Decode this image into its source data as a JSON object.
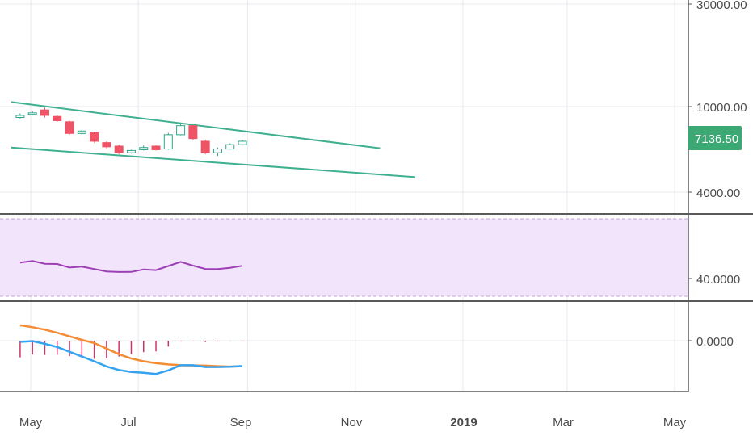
{
  "colors": {
    "up": "#2fa58a",
    "down": "#ef5366",
    "channel": "#3fb08f",
    "rsi": "#9c3fb5",
    "rsi_band": "#f2e5fb",
    "macd": "#36a3f0",
    "signal": "#f48c36",
    "hist": "#d0336b",
    "grid": "#e6eaee",
    "sep": "#5a5a5a",
    "last_price_bg": "#3ca874"
  },
  "price_scale": {
    "ticks": [
      {
        "label": "30000.00",
        "value": 30000
      },
      {
        "label": "10000.00",
        "value": 10000
      },
      {
        "label": "4000.00",
        "value": 4000
      }
    ],
    "last_price": {
      "label": "7136.50",
      "value": 7136.5
    }
  },
  "rsi_scale": {
    "ticks": [
      {
        "label": "40.0000",
        "value": 40
      }
    ]
  },
  "macd_scale": {
    "ticks": [
      {
        "label": "0.0000",
        "value": 0
      }
    ]
  },
  "time_axis": [
    {
      "label": "May",
      "date": "2018-05-01",
      "bold": false
    },
    {
      "label": "Jul",
      "date": "2018-07-01",
      "bold": false
    },
    {
      "label": "Sep",
      "date": "2018-09-01",
      "bold": false
    },
    {
      "label": "Nov",
      "date": "2018-11-01",
      "bold": false
    },
    {
      "label": "2019",
      "date": "2019-01-01",
      "bold": true
    },
    {
      "label": "Mar",
      "date": "2019-03-01",
      "bold": false
    },
    {
      "label": "May",
      "date": "2019-05-01",
      "bold": false
    }
  ],
  "chart_data": {
    "type": "candlestick",
    "scale": "log",
    "ylim": [
      3500,
      33000
    ],
    "xlim": [
      "2018-04-25",
      "2019-05-01"
    ],
    "candles": [
      {
        "date": "2018-04-25",
        "open": 8900,
        "high": 9300,
        "low": 8800,
        "close": 9100
      },
      {
        "date": "2018-05-02",
        "open": 9200,
        "high": 9500,
        "low": 9100,
        "close": 9350
      },
      {
        "date": "2018-05-09",
        "open": 9650,
        "high": 9900,
        "low": 8900,
        "close": 9100
      },
      {
        "date": "2018-05-16",
        "open": 9000,
        "high": 9100,
        "low": 8500,
        "close": 8600
      },
      {
        "date": "2018-05-23",
        "open": 8500,
        "high": 8600,
        "low": 7400,
        "close": 7500
      },
      {
        "date": "2018-05-30",
        "open": 7500,
        "high": 7800,
        "low": 7400,
        "close": 7700
      },
      {
        "date": "2018-06-06",
        "open": 7550,
        "high": 7650,
        "low": 6800,
        "close": 6900
      },
      {
        "date": "2018-06-13",
        "open": 6800,
        "high": 6900,
        "low": 6400,
        "close": 6500
      },
      {
        "date": "2018-06-20",
        "open": 6550,
        "high": 6650,
        "low": 6000,
        "close": 6100
      },
      {
        "date": "2018-06-27",
        "open": 6100,
        "high": 6300,
        "low": 6050,
        "close": 6250
      },
      {
        "date": "2018-07-04",
        "open": 6300,
        "high": 6600,
        "low": 6250,
        "close": 6450
      },
      {
        "date": "2018-07-11",
        "open": 6550,
        "high": 6600,
        "low": 6250,
        "close": 6300
      },
      {
        "date": "2018-07-18",
        "open": 6350,
        "high": 7550,
        "low": 6300,
        "close": 7400
      },
      {
        "date": "2018-07-25",
        "open": 7400,
        "high": 8300,
        "low": 7350,
        "close": 8150
      },
      {
        "date": "2018-08-01",
        "open": 8150,
        "high": 8200,
        "low": 7000,
        "close": 7100
      },
      {
        "date": "2018-08-08",
        "open": 6900,
        "high": 7000,
        "low": 6000,
        "close": 6100
      },
      {
        "date": "2018-08-15",
        "open": 6100,
        "high": 6450,
        "low": 5900,
        "close": 6350
      },
      {
        "date": "2018-08-22",
        "open": 6350,
        "high": 6750,
        "low": 6300,
        "close": 6650
      },
      {
        "date": "2018-08-29",
        "open": 6650,
        "high": 7000,
        "low": 6600,
        "close": 6900
      }
    ],
    "channel": [
      {
        "from": {
          "date": "2018-04-20",
          "value": 10500
        },
        "to": {
          "date": "2018-11-15",
          "value": 6400
        }
      },
      {
        "from": {
          "date": "2018-04-20",
          "value": 6450
        },
        "to": {
          "date": "2018-12-05",
          "value": 4700
        }
      }
    ],
    "rsi": {
      "ylim": [
        32,
        68
      ],
      "band": [
        30,
        70
      ],
      "points": [
        {
          "date": "2018-04-25",
          "value": 52.8
        },
        {
          "date": "2018-05-02",
          "value": 54.0
        },
        {
          "date": "2018-05-09",
          "value": 51.8
        },
        {
          "date": "2018-05-16",
          "value": 51.6
        },
        {
          "date": "2018-05-23",
          "value": 48.8
        },
        {
          "date": "2018-05-30",
          "value": 49.5
        },
        {
          "date": "2018-06-06",
          "value": 47.6
        },
        {
          "date": "2018-06-13",
          "value": 45.7
        },
        {
          "date": "2018-06-20",
          "value": 45.2
        },
        {
          "date": "2018-06-27",
          "value": 45.3
        },
        {
          "date": "2018-07-04",
          "value": 47.3
        },
        {
          "date": "2018-07-11",
          "value": 46.7
        },
        {
          "date": "2018-07-18",
          "value": 50.0
        },
        {
          "date": "2018-07-25",
          "value": 53.3
        },
        {
          "date": "2018-08-01",
          "value": 50.3
        },
        {
          "date": "2018-08-08",
          "value": 47.7
        },
        {
          "date": "2018-08-15",
          "value": 47.6
        },
        {
          "date": "2018-08-22",
          "value": 48.6
        },
        {
          "date": "2018-08-29",
          "value": 50.2
        }
      ]
    },
    "macd": {
      "ylim": [
        -1100,
        500
      ],
      "macd": [
        {
          "date": "2018-04-25",
          "value": -30
        },
        {
          "date": "2018-05-02",
          "value": -10
        },
        {
          "date": "2018-05-09",
          "value": -80
        },
        {
          "date": "2018-05-16",
          "value": -160
        },
        {
          "date": "2018-05-23",
          "value": -280
        },
        {
          "date": "2018-05-30",
          "value": -400
        },
        {
          "date": "2018-06-06",
          "value": -520
        },
        {
          "date": "2018-06-13",
          "value": -650
        },
        {
          "date": "2018-06-20",
          "value": -740
        },
        {
          "date": "2018-06-27",
          "value": -790
        },
        {
          "date": "2018-07-04",
          "value": -810
        },
        {
          "date": "2018-07-11",
          "value": -840
        },
        {
          "date": "2018-07-18",
          "value": -750
        },
        {
          "date": "2018-07-25",
          "value": -620
        },
        {
          "date": "2018-08-01",
          "value": -620
        },
        {
          "date": "2018-08-08",
          "value": -665
        },
        {
          "date": "2018-08-15",
          "value": -665
        },
        {
          "date": "2018-08-22",
          "value": -660
        },
        {
          "date": "2018-08-29",
          "value": -640
        }
      ],
      "signal": [
        {
          "date": "2018-04-25",
          "value": 390
        },
        {
          "date": "2018-05-02",
          "value": 340
        },
        {
          "date": "2018-05-09",
          "value": 280
        },
        {
          "date": "2018-05-16",
          "value": 200
        },
        {
          "date": "2018-05-23",
          "value": 110
        },
        {
          "date": "2018-05-30",
          "value": 20
        },
        {
          "date": "2018-06-06",
          "value": -60
        },
        {
          "date": "2018-06-13",
          "value": -200
        },
        {
          "date": "2018-06-20",
          "value": -340
        },
        {
          "date": "2018-06-27",
          "value": -450
        },
        {
          "date": "2018-07-04",
          "value": -520
        },
        {
          "date": "2018-07-11",
          "value": -570
        },
        {
          "date": "2018-07-18",
          "value": -600
        },
        {
          "date": "2018-07-25",
          "value": -620
        },
        {
          "date": "2018-08-01",
          "value": -625
        },
        {
          "date": "2018-08-08",
          "value": -630
        },
        {
          "date": "2018-08-15",
          "value": -645
        },
        {
          "date": "2018-08-22",
          "value": -655
        },
        {
          "date": "2018-08-29",
          "value": -645
        }
      ],
      "histogram": [
        {
          "date": "2018-04-25",
          "value": -420
        },
        {
          "date": "2018-05-02",
          "value": -350
        },
        {
          "date": "2018-05-09",
          "value": -360
        },
        {
          "date": "2018-05-16",
          "value": -360
        },
        {
          "date": "2018-05-23",
          "value": -390
        },
        {
          "date": "2018-05-30",
          "value": -420
        },
        {
          "date": "2018-06-06",
          "value": -460
        },
        {
          "date": "2018-06-13",
          "value": -450
        },
        {
          "date": "2018-06-20",
          "value": -400
        },
        {
          "date": "2018-06-27",
          "value": -340
        },
        {
          "date": "2018-07-04",
          "value": -290
        },
        {
          "date": "2018-07-11",
          "value": -270
        },
        {
          "date": "2018-07-18",
          "value": -150
        },
        {
          "date": "2018-07-25",
          "value": -20
        },
        {
          "date": "2018-08-01",
          "value": -10
        },
        {
          "date": "2018-08-08",
          "value": -35
        },
        {
          "date": "2018-08-15",
          "value": -20
        },
        {
          "date": "2018-08-22",
          "value": -5
        },
        {
          "date": "2018-08-29",
          "value": -15
        }
      ]
    }
  }
}
